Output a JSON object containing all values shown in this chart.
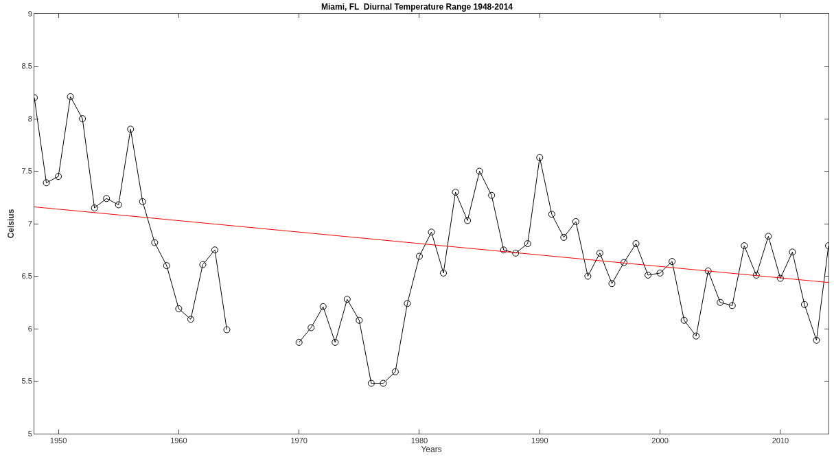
{
  "chart_data": {
    "type": "line",
    "title": "Miami, FL  Diurnal Temperature Range 1948-2014",
    "xlabel": "Years",
    "ylabel": "Celsius",
    "x": [
      1948,
      1949,
      1950,
      1951,
      1952,
      1953,
      1954,
      1955,
      1956,
      1957,
      1958,
      1959,
      1960,
      1961,
      1962,
      1963,
      1964,
      1965,
      1966,
      1967,
      1968,
      1969,
      1970,
      1971,
      1972,
      1973,
      1974,
      1975,
      1976,
      1977,
      1978,
      1979,
      1980,
      1981,
      1982,
      1983,
      1984,
      1985,
      1986,
      1987,
      1988,
      1989,
      1990,
      1991,
      1992,
      1993,
      1994,
      1995,
      1996,
      1997,
      1998,
      1999,
      2000,
      2001,
      2002,
      2003,
      2004,
      2005,
      2006,
      2007,
      2008,
      2009,
      2010,
      2011,
      2012,
      2013,
      2014
    ],
    "series": [
      {
        "color": "#000000",
        "marker": "circle",
        "values": [
          8.2,
          7.39,
          7.45,
          8.21,
          8.0,
          7.15,
          7.24,
          7.18,
          7.9,
          7.21,
          6.82,
          6.6,
          6.19,
          6.09,
          6.61,
          6.75,
          5.99,
          null,
          null,
          null,
          null,
          null,
          5.87,
          6.01,
          6.21,
          5.87,
          6.28,
          6.08,
          5.48,
          5.48,
          5.59,
          6.24,
          6.69,
          6.92,
          6.53,
          7.3,
          7.03,
          7.5,
          7.27,
          6.75,
          6.72,
          6.81,
          7.63,
          7.09,
          6.87,
          7.02,
          6.5,
          6.72,
          6.43,
          6.63,
          6.81,
          6.51,
          6.53,
          6.64,
          6.08,
          5.93,
          6.55,
          6.25,
          6.22,
          6.79,
          6.51,
          6.88,
          6.48,
          6.73,
          6.23,
          5.89,
          6.79
        ]
      },
      {
        "type": "line",
        "color": "#ff0000",
        "marker": "none",
        "x": [
          1948,
          2014
        ],
        "values": [
          7.16,
          6.44
        ]
      }
    ],
    "xlim": [
      1948,
      2014
    ],
    "xticks": [
      1950,
      1960,
      1970,
      1980,
      1990,
      2000,
      2010
    ],
    "ylim": [
      5,
      9
    ],
    "yticks": [
      5,
      5.5,
      6,
      6.5,
      7,
      7.5,
      8,
      8.5,
      9
    ],
    "grid": false,
    "line_style": "solid"
  }
}
